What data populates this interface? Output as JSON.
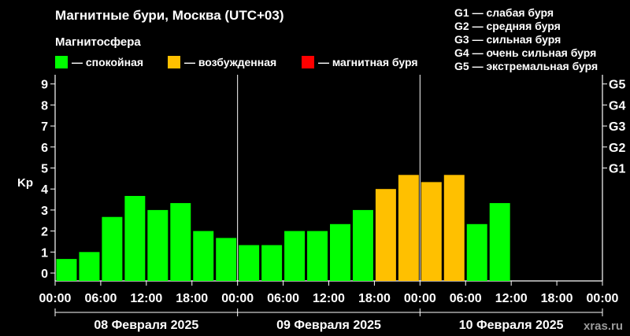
{
  "title": "Магнитные бури, Москва (UTC+03)",
  "legend": {
    "title": "Магнитосфера",
    "items": [
      {
        "label": "— спокойная",
        "color": "#00ff00"
      },
      {
        "label": "— возбужденная",
        "color": "#ffc000"
      },
      {
        "label": "— магнитная буря",
        "color": "#ff0000"
      }
    ]
  },
  "storm_scale": [
    {
      "level": "G1",
      "label": "G1 — слабая буря",
      "kp": 5
    },
    {
      "level": "G2",
      "label": "G2 — средняя буря",
      "kp": 6
    },
    {
      "level": "G3",
      "label": "G3 — сильная буря",
      "kp": 7
    },
    {
      "level": "G4",
      "label": "G4 — очень сильная буря",
      "kp": 8
    },
    {
      "level": "G5",
      "label": "G5 — экстремальная буря",
      "kp": 9
    }
  ],
  "watermark": "xras.ru",
  "chart_data": {
    "type": "bar",
    "ylabel": "Kp",
    "ylim": [
      0,
      9.5
    ],
    "yticks": [
      0,
      1,
      2,
      3,
      4,
      5,
      6,
      7,
      8,
      9
    ],
    "x_tick_labels": [
      "00:00",
      "06:00",
      "12:00",
      "18:00",
      "00:00",
      "06:00",
      "12:00",
      "18:00",
      "00:00",
      "06:00",
      "12:00",
      "18:00",
      "00:00"
    ],
    "day_labels": [
      "08 Февраля 2025",
      "09 Февраля 2025",
      "10 Февраля 2025"
    ],
    "slots_per_day": 8,
    "values": [
      0.67,
      1.0,
      2.67,
      3.67,
      3.0,
      3.33,
      2.0,
      1.67,
      1.33,
      1.33,
      2.0,
      2.0,
      2.33,
      3.0,
      4.0,
      4.67,
      4.33,
      4.67,
      2.33,
      3.33
    ],
    "colors": {
      "quiet": "#00ff00",
      "active": "#ffc000",
      "storm": "#ff0000"
    },
    "grid": false
  }
}
